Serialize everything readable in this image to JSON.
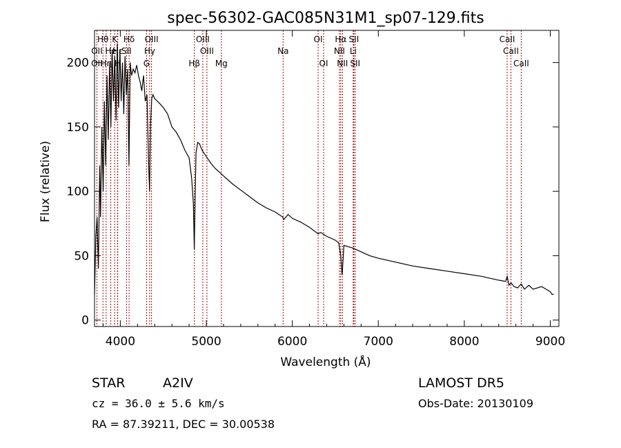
{
  "chart_data": {
    "type": "line",
    "title": "spec-56302-GAC085N31M1_sp07-129.fits",
    "xlabel": "Wavelength (Å)",
    "ylabel": "Flux (relative)",
    "xlim": [
      3700,
      9100
    ],
    "ylim": [
      -5,
      225
    ],
    "xticks": [
      4000,
      5000,
      6000,
      7000,
      8000,
      9000
    ],
    "yticks": [
      0,
      50,
      100,
      150,
      200
    ],
    "grid": false,
    "series": [
      {
        "x": [
          3700,
          3715,
          3730,
          3745,
          3760,
          3770,
          3785,
          3800,
          3815,
          3830,
          3845,
          3860,
          3875,
          3890,
          3905,
          3920,
          3935,
          3950,
          3965,
          3980,
          3995,
          4010,
          4025,
          4040,
          4055,
          4070,
          4085,
          4100,
          4115,
          4130,
          4150,
          4170,
          4190,
          4210,
          4230,
          4250,
          4270,
          4290,
          4310,
          4330,
          4340,
          4350,
          4365,
          4380,
          4400,
          4430,
          4460,
          4500,
          4550,
          4600,
          4650,
          4700,
          4750,
          4800,
          4830,
          4850,
          4860,
          4870,
          4880,
          4900,
          4920,
          4950,
          5000,
          5050,
          5100,
          5150,
          5200,
          5300,
          5400,
          5500,
          5600,
          5700,
          5800,
          5890,
          5900,
          5950,
          6000,
          6100,
          6200,
          6300,
          6330,
          6400,
          6500,
          6540,
          6563,
          6580,
          6600,
          6700,
          6800,
          6900,
          7000,
          7200,
          7400,
          7600,
          7800,
          8000,
          8200,
          8400,
          8480,
          8498,
          8520,
          8542,
          8580,
          8620,
          8662,
          8700,
          8750,
          8800,
          8900,
          8950,
          9000,
          9020,
          9040
        ],
        "y": [
          20,
          65,
          80,
          40,
          120,
          80,
          150,
          100,
          170,
          120,
          190,
          140,
          200,
          150,
          210,
          170,
          205,
          155,
          215,
          165,
          210,
          170,
          200,
          160,
          205,
          175,
          195,
          120,
          200,
          190,
          195,
          192,
          198,
          190,
          185,
          178,
          190,
          170,
          175,
          120,
          100,
          150,
          172,
          175,
          172,
          170,
          168,
          165,
          160,
          150,
          146,
          140,
          132,
          126,
          110,
          90,
          55,
          95,
          130,
          138,
          137,
          132,
          127,
          122,
          118,
          115,
          112,
          106,
          101,
          96,
          91,
          87,
          84,
          80,
          78,
          82,
          79,
          76,
          72,
          67,
          68,
          65,
          62,
          60,
          50,
          35,
          58,
          56,
          53,
          50,
          48,
          45,
          42,
          40,
          38,
          36,
          34,
          31,
          30,
          34,
          27,
          29,
          26,
          25,
          28,
          24,
          27,
          24,
          26,
          24,
          22,
          20,
          20
        ],
        "color": "#000000"
      }
    ],
    "line_markers": {
      "color": "#aa0000",
      "lines": [
        {
          "label": "Hθ",
          "x": 3798,
          "row": 0
        },
        {
          "label": "OII",
          "x": 3727,
          "row": 2
        },
        {
          "label": "OII",
          "x": 3727,
          "row": 1
        },
        {
          "label": "K",
          "x": 3934,
          "row": 0
        },
        {
          "label": "He",
          "x": 3889,
          "row": 1
        },
        {
          "label": "Hη",
          "x": 3835,
          "row": 2
        },
        {
          "label": "H",
          "x": 3968,
          "row": 2
        },
        {
          "label": "Hε",
          "x": 3970,
          "row": 1
        },
        {
          "label": "Hδ",
          "x": 4102,
          "row": 0
        },
        {
          "label": "SII",
          "x": 4072,
          "row": 1
        },
        {
          "label": "OIII",
          "x": 4363,
          "row": 0
        },
        {
          "label": "Hγ",
          "x": 4341,
          "row": 1
        },
        {
          "label": "G",
          "x": 4305,
          "row": 2
        },
        {
          "label": "OIII",
          "x": 4959,
          "row": 0
        },
        {
          "label": "OIII",
          "x": 5007,
          "row": 1
        },
        {
          "label": "Hβ",
          "x": 4861,
          "row": 2
        },
        {
          "label": "Mg",
          "x": 5175,
          "row": 2
        },
        {
          "label": "Na",
          "x": 5893,
          "row": 1
        },
        {
          "label": "OI",
          "x": 6300,
          "row": 0
        },
        {
          "label": "OI",
          "x": 6364,
          "row": 2
        },
        {
          "label": "Hα",
          "x": 6563,
          "row": 0
        },
        {
          "label": "NII",
          "x": 6548,
          "row": 1
        },
        {
          "label": "NII",
          "x": 6583,
          "row": 2
        },
        {
          "label": "SII",
          "x": 6716,
          "row": 0
        },
        {
          "label": "Li",
          "x": 6708,
          "row": 1
        },
        {
          "label": "SII",
          "x": 6731,
          "row": 2
        },
        {
          "label": "CaII",
          "x": 8498,
          "row": 0
        },
        {
          "label": "CaII",
          "x": 8542,
          "row": 1
        },
        {
          "label": "CaII",
          "x": 8662,
          "row": 2
        }
      ]
    }
  },
  "info": {
    "obj_class": "STAR",
    "subclass": "A2IV",
    "cz": "cz = 36.0 ± 5.6 km/s",
    "radec": "RA =  87.39211, DEC =  30.00538",
    "survey": "LAMOST DR5",
    "obsdate": "Obs-Date: 20130109"
  }
}
